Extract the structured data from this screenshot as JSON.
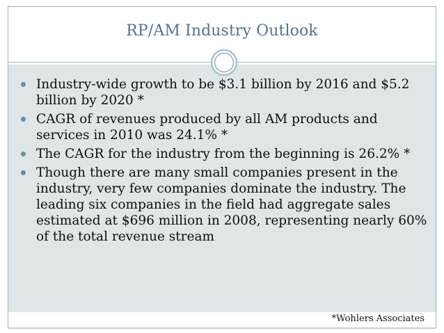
{
  "slide": {
    "title": "RP/AM Industry Outlook",
    "bullets": [
      "Industry-wide growth to be $3.1 billion by 2016 and $5.2 billion by 2020 *",
      "CAGR of revenues produced by all AM products and services in 2010 was 24.1% *",
      "The CAGR for the industry from the beginning is 26.2% *",
      "Though there are many small companies present in the industry, very few companies dominate the industry. The leading six companies in the field had aggregate sales estimated at $696 million in 2008, representing nearly 60% of the total revenue stream"
    ],
    "citation": "*Wohlers Associates"
  },
  "colors": {
    "title_text": "#54728a",
    "content_bg": "#dfe6e7",
    "bullet": "#6c8ea0",
    "ornament": "#a9c0c6"
  }
}
